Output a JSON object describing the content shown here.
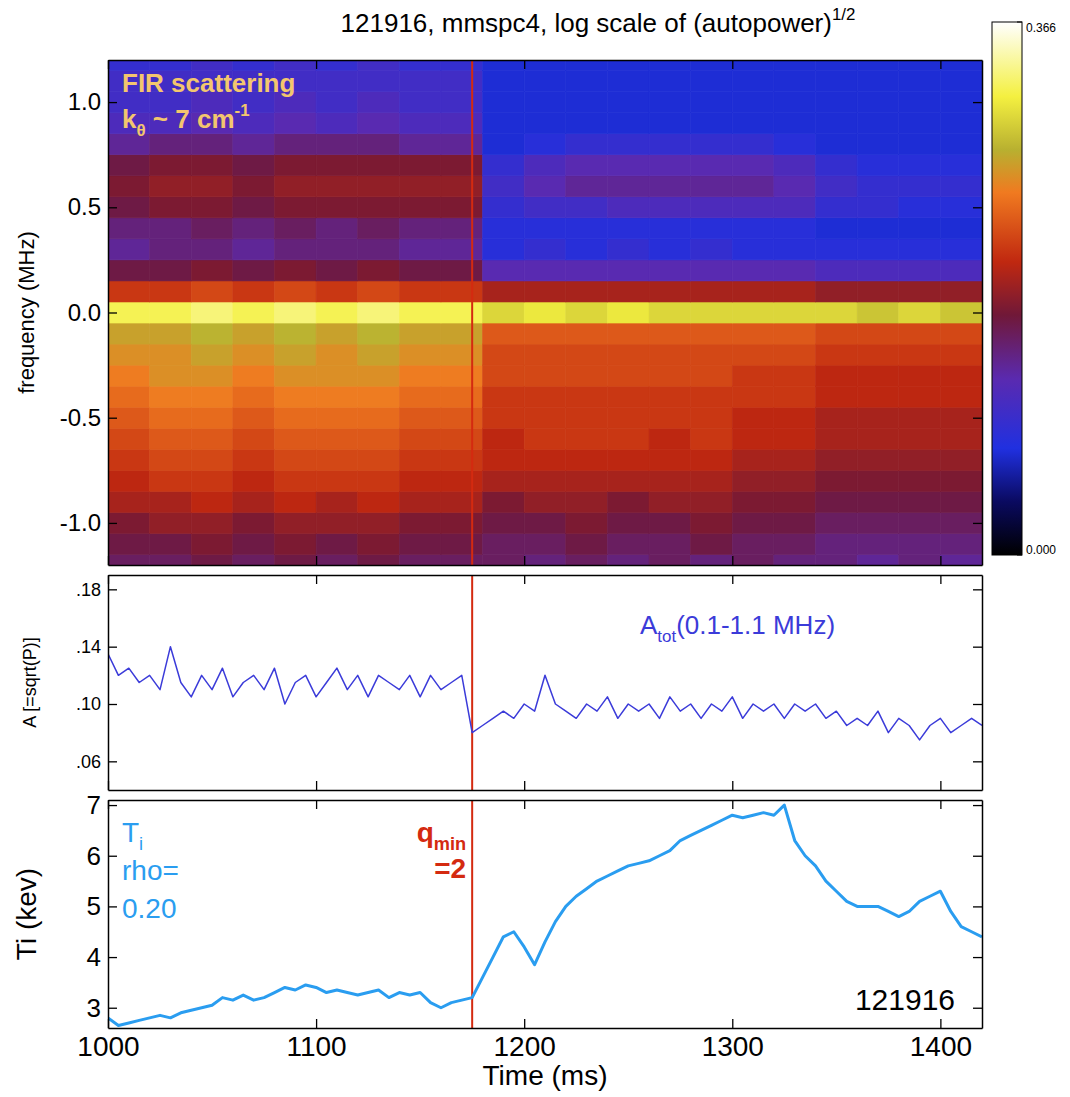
{
  "chart_data": [
    {
      "type": "heatmap",
      "title": {
        "text": "121916, mmspc4, log scale of (autopower)",
        "sup": "1/2"
      },
      "ylabel": "frequency (MHz)",
      "xlim": [
        1000,
        1420
      ],
      "xticks": [
        1000,
        1100,
        1200,
        1300,
        1400
      ],
      "ylim": [
        -1.2,
        1.2
      ],
      "yticks": [
        {
          "value": -1,
          "label": "-1.0"
        },
        -0.5,
        {
          "value": 0,
          "label": "0.0"
        },
        0.5,
        {
          "value": 1,
          "label": "1.0"
        }
      ],
      "tick_labels": "y",
      "x_bins": [
        1000,
        1020,
        1040,
        1060,
        1080,
        1100,
        1120,
        1140,
        1160,
        1180,
        1200,
        1220,
        1240,
        1260,
        1280,
        1300,
        1320,
        1340,
        1360,
        1380,
        1400,
        1420
      ],
      "y": [
        -1.2,
        -1.1,
        -1.0,
        -0.9,
        -0.8,
        -0.7,
        -0.6,
        -0.5,
        -0.4,
        -0.3,
        -0.2,
        -0.1,
        0.0,
        0.1,
        0.2,
        0.3,
        0.4,
        0.5,
        0.6,
        0.7,
        0.8,
        0.9,
        1.0,
        1.1,
        1.2
      ],
      "cells": [
        [
          0.15,
          0.15,
          0.16,
          0.15,
          0.16,
          0.15,
          0.16,
          0.15,
          0.15,
          0.15,
          0.14,
          0.15,
          0.14,
          0.15,
          0.14,
          0.15,
          0.14,
          0.14,
          0.13,
          0.14,
          0.13
        ],
        [
          0.16,
          0.16,
          0.17,
          0.16,
          0.17,
          0.16,
          0.17,
          0.16,
          0.16,
          0.15,
          0.15,
          0.16,
          0.15,
          0.15,
          0.16,
          0.15,
          0.15,
          0.14,
          0.14,
          0.14,
          0.14
        ],
        [
          0.17,
          0.18,
          0.18,
          0.17,
          0.18,
          0.18,
          0.18,
          0.17,
          0.17,
          0.16,
          0.16,
          0.17,
          0.16,
          0.16,
          0.17,
          0.16,
          0.16,
          0.15,
          0.15,
          0.15,
          0.15
        ],
        [
          0.19,
          0.19,
          0.2,
          0.19,
          0.2,
          0.19,
          0.2,
          0.19,
          0.19,
          0.17,
          0.18,
          0.18,
          0.17,
          0.18,
          0.18,
          0.17,
          0.17,
          0.16,
          0.16,
          0.16,
          0.16
        ],
        [
          0.2,
          0.21,
          0.21,
          0.2,
          0.21,
          0.21,
          0.21,
          0.2,
          0.2,
          0.19,
          0.19,
          0.19,
          0.19,
          0.19,
          0.19,
          0.18,
          0.18,
          0.17,
          0.17,
          0.17,
          0.17
        ],
        [
          0.21,
          0.22,
          0.22,
          0.21,
          0.22,
          0.22,
          0.22,
          0.21,
          0.21,
          0.2,
          0.2,
          0.2,
          0.2,
          0.2,
          0.2,
          0.19,
          0.19,
          0.18,
          0.18,
          0.18,
          0.18
        ],
        [
          0.22,
          0.23,
          0.23,
          0.22,
          0.23,
          0.23,
          0.23,
          0.22,
          0.22,
          0.2,
          0.21,
          0.21,
          0.21,
          0.2,
          0.21,
          0.2,
          0.2,
          0.19,
          0.19,
          0.19,
          0.19
        ],
        [
          0.23,
          0.24,
          0.24,
          0.23,
          0.24,
          0.24,
          0.24,
          0.23,
          0.23,
          0.21,
          0.21,
          0.21,
          0.21,
          0.21,
          0.21,
          0.2,
          0.2,
          0.19,
          0.19,
          0.19,
          0.19
        ],
        [
          0.24,
          0.25,
          0.25,
          0.24,
          0.25,
          0.25,
          0.25,
          0.24,
          0.24,
          0.21,
          0.21,
          0.21,
          0.21,
          0.21,
          0.21,
          0.21,
          0.21,
          0.2,
          0.2,
          0.2,
          0.2
        ],
        [
          0.25,
          0.26,
          0.26,
          0.25,
          0.26,
          0.26,
          0.26,
          0.25,
          0.25,
          0.22,
          0.22,
          0.22,
          0.22,
          0.22,
          0.22,
          0.21,
          0.21,
          0.2,
          0.2,
          0.2,
          0.2
        ],
        [
          0.26,
          0.26,
          0.27,
          0.26,
          0.27,
          0.26,
          0.27,
          0.26,
          0.26,
          0.22,
          0.22,
          0.22,
          0.22,
          0.22,
          0.22,
          0.22,
          0.22,
          0.21,
          0.21,
          0.21,
          0.21
        ],
        [
          0.27,
          0.27,
          0.28,
          0.27,
          0.28,
          0.27,
          0.28,
          0.27,
          0.27,
          0.23,
          0.23,
          0.23,
          0.23,
          0.23,
          0.23,
          0.23,
          0.23,
          0.22,
          0.22,
          0.22,
          0.22
        ],
        [
          0.32,
          0.32,
          0.33,
          0.32,
          0.33,
          0.32,
          0.33,
          0.32,
          0.32,
          0.3,
          0.31,
          0.3,
          0.31,
          0.3,
          0.3,
          0.3,
          0.3,
          0.3,
          0.29,
          0.3,
          0.29
        ],
        [
          0.21,
          0.21,
          0.22,
          0.21,
          0.22,
          0.21,
          0.22,
          0.21,
          0.21,
          0.19,
          0.19,
          0.19,
          0.19,
          0.19,
          0.19,
          0.19,
          0.19,
          0.18,
          0.18,
          0.18,
          0.18
        ],
        [
          0.16,
          0.16,
          0.17,
          0.16,
          0.17,
          0.16,
          0.17,
          0.16,
          0.16,
          0.12,
          0.12,
          0.12,
          0.12,
          0.12,
          0.12,
          0.12,
          0.12,
          0.11,
          0.11,
          0.11,
          0.11
        ],
        [
          0.13,
          0.14,
          0.14,
          0.13,
          0.14,
          0.14,
          0.14,
          0.13,
          0.13,
          0.08,
          0.09,
          0.08,
          0.09,
          0.08,
          0.09,
          0.08,
          0.08,
          0.08,
          0.08,
          0.08,
          0.08
        ],
        [
          0.14,
          0.14,
          0.15,
          0.14,
          0.15,
          0.14,
          0.15,
          0.14,
          0.14,
          0.08,
          0.08,
          0.08,
          0.08,
          0.08,
          0.08,
          0.08,
          0.08,
          0.07,
          0.07,
          0.07,
          0.07
        ],
        [
          0.16,
          0.17,
          0.17,
          0.16,
          0.17,
          0.17,
          0.17,
          0.17,
          0.17,
          0.09,
          0.1,
          0.1,
          0.11,
          0.11,
          0.11,
          0.11,
          0.11,
          0.09,
          0.09,
          0.08,
          0.08
        ],
        [
          0.17,
          0.18,
          0.18,
          0.17,
          0.18,
          0.18,
          0.18,
          0.18,
          0.18,
          0.1,
          0.12,
          0.13,
          0.13,
          0.13,
          0.13,
          0.13,
          0.12,
          0.1,
          0.09,
          0.09,
          0.09
        ],
        [
          0.16,
          0.17,
          0.17,
          0.16,
          0.17,
          0.17,
          0.17,
          0.17,
          0.17,
          0.09,
          0.11,
          0.12,
          0.12,
          0.12,
          0.12,
          0.12,
          0.11,
          0.09,
          0.08,
          0.08,
          0.08
        ],
        [
          0.13,
          0.14,
          0.14,
          0.13,
          0.14,
          0.14,
          0.14,
          0.13,
          0.13,
          0.07,
          0.08,
          0.09,
          0.09,
          0.09,
          0.09,
          0.09,
          0.08,
          0.07,
          0.07,
          0.07,
          0.07
        ],
        [
          0.11,
          0.11,
          0.12,
          0.11,
          0.12,
          0.11,
          0.12,
          0.11,
          0.11,
          0.07,
          0.07,
          0.07,
          0.07,
          0.07,
          0.07,
          0.07,
          0.07,
          0.07,
          0.07,
          0.07,
          0.07
        ],
        [
          0.1,
          0.1,
          0.11,
          0.1,
          0.11,
          0.1,
          0.11,
          0.1,
          0.1,
          0.07,
          0.07,
          0.07,
          0.07,
          0.07,
          0.07,
          0.07,
          0.07,
          0.07,
          0.07,
          0.07,
          0.07
        ],
        [
          0.1,
          0.1,
          0.1,
          0.1,
          0.1,
          0.1,
          0.1,
          0.1,
          0.1,
          0.07,
          0.07,
          0.07,
          0.07,
          0.07,
          0.07,
          0.07,
          0.07,
          0.07,
          0.07,
          0.07,
          0.07
        ],
        [
          0.09,
          0.09,
          0.1,
          0.09,
          0.1,
          0.09,
          0.1,
          0.09,
          0.09,
          0.07,
          0.07,
          0.07,
          0.07,
          0.07,
          0.07,
          0.07,
          0.07,
          0.07,
          0.07,
          0.07,
          0.07
        ]
      ],
      "color_range": [
        0,
        0.366
      ],
      "color_ticks": [
        {
          "value": 0,
          "label": "0.000"
        },
        {
          "value": 0.366,
          "label": "0.366"
        }
      ],
      "annotations": [
        {
          "text": "FIR scattering"
        },
        {
          "text": "k",
          "sub": "θ",
          "after": " ~ 7 cm",
          "sup": "-1"
        }
      ],
      "vline": 1175
    },
    {
      "type": "line",
      "ylabel": "A [=sqrt(P)]",
      "xlim": [
        1000,
        1420
      ],
      "xticks": [
        1000,
        1100,
        1200,
        1300,
        1400
      ],
      "ylim": [
        0.04,
        0.19
      ],
      "yticks": [
        {
          "value": 0.06,
          "label": ".06"
        },
        {
          "value": 0.1,
          "label": ".10"
        },
        {
          "value": 0.14,
          "label": ".14"
        },
        {
          "value": 0.18,
          "label": ".18"
        }
      ],
      "tick_labels": "y",
      "x": [
        1000,
        1005,
        1010,
        1015,
        1020,
        1025,
        1030,
        1035,
        1040,
        1045,
        1050,
        1055,
        1060,
        1065,
        1070,
        1075,
        1080,
        1085,
        1090,
        1095,
        1100,
        1105,
        1110,
        1115,
        1120,
        1125,
        1130,
        1135,
        1140,
        1145,
        1150,
        1155,
        1160,
        1165,
        1170,
        1175,
        1180,
        1185,
        1190,
        1195,
        1200,
        1205,
        1210,
        1215,
        1220,
        1225,
        1230,
        1235,
        1240,
        1245,
        1250,
        1255,
        1260,
        1265,
        1270,
        1275,
        1280,
        1285,
        1290,
        1295,
        1300,
        1305,
        1310,
        1315,
        1320,
        1325,
        1330,
        1335,
        1340,
        1345,
        1350,
        1355,
        1360,
        1365,
        1370,
        1375,
        1380,
        1385,
        1390,
        1395,
        1400,
        1405,
        1410,
        1415,
        1420
      ],
      "series": [
        {
          "color": "#3b3bd9",
          "values": [
            0.135,
            0.12,
            0.125,
            0.115,
            0.12,
            0.11,
            0.14,
            0.115,
            0.105,
            0.12,
            0.11,
            0.125,
            0.105,
            0.115,
            0.12,
            0.11,
            0.125,
            0.1,
            0.115,
            0.12,
            0.105,
            0.115,
            0.125,
            0.11,
            0.12,
            0.105,
            0.12,
            0.115,
            0.11,
            0.12,
            0.105,
            0.12,
            0.11,
            0.115,
            0.12,
            0.08,
            0.085,
            0.09,
            0.095,
            0.09,
            0.1,
            0.095,
            0.12,
            0.1,
            0.095,
            0.09,
            0.1,
            0.095,
            0.105,
            0.09,
            0.1,
            0.095,
            0.1,
            0.09,
            0.105,
            0.095,
            0.1,
            0.09,
            0.1,
            0.095,
            0.105,
            0.09,
            0.1,
            0.095,
            0.1,
            0.09,
            0.1,
            0.095,
            0.1,
            0.09,
            0.095,
            0.085,
            0.09,
            0.085,
            0.095,
            0.08,
            0.09,
            0.085,
            0.075,
            0.085,
            0.09,
            0.08,
            0.085,
            0.09,
            0.085
          ]
        }
      ],
      "annotations": [
        {
          "text": "A",
          "sub": "tot",
          "after": "(0.1-1.1 MHz)"
        }
      ],
      "vline": 1175
    },
    {
      "type": "line",
      "ylabel": "Ti (kev)",
      "xlabel": "Time (ms)",
      "xlim": [
        1000,
        1420
      ],
      "xticks": [
        1000,
        1100,
        1200,
        1300,
        1400
      ],
      "ylim": [
        2.6,
        7.1
      ],
      "yticks": [
        3,
        4,
        5,
        6,
        7
      ],
      "x": [
        1000,
        1005,
        1010,
        1015,
        1020,
        1025,
        1030,
        1035,
        1040,
        1045,
        1050,
        1055,
        1060,
        1065,
        1070,
        1075,
        1080,
        1085,
        1090,
        1095,
        1100,
        1105,
        1110,
        1115,
        1120,
        1125,
        1130,
        1135,
        1140,
        1145,
        1150,
        1155,
        1160,
        1165,
        1170,
        1175,
        1180,
        1185,
        1190,
        1195,
        1200,
        1205,
        1210,
        1215,
        1220,
        1225,
        1230,
        1235,
        1240,
        1245,
        1250,
        1255,
        1260,
        1265,
        1270,
        1275,
        1280,
        1285,
        1290,
        1295,
        1300,
        1305,
        1310,
        1315,
        1320,
        1325,
        1330,
        1335,
        1340,
        1345,
        1350,
        1355,
        1360,
        1365,
        1370,
        1375,
        1380,
        1385,
        1390,
        1395,
        1400,
        1405,
        1410,
        1415,
        1420
      ],
      "series": [
        {
          "color": "#2a9df0",
          "values": [
            2.8,
            2.65,
            2.7,
            2.75,
            2.8,
            2.85,
            2.8,
            2.9,
            2.95,
            3.0,
            3.05,
            3.2,
            3.15,
            3.25,
            3.15,
            3.2,
            3.3,
            3.4,
            3.35,
            3.45,
            3.4,
            3.3,
            3.35,
            3.3,
            3.25,
            3.3,
            3.35,
            3.2,
            3.3,
            3.25,
            3.3,
            3.1,
            3.0,
            3.1,
            3.15,
            3.2,
            3.6,
            4.0,
            4.4,
            4.5,
            4.2,
            3.85,
            4.3,
            4.7,
            5.0,
            5.2,
            5.35,
            5.5,
            5.6,
            5.7,
            5.8,
            5.85,
            5.9,
            6.0,
            6.1,
            6.3,
            6.4,
            6.5,
            6.6,
            6.7,
            6.8,
            6.75,
            6.8,
            6.85,
            6.8,
            7.0,
            6.3,
            6.0,
            5.8,
            5.5,
            5.3,
            5.1,
            5.0,
            5.0,
            5.0,
            4.9,
            4.8,
            4.9,
            5.1,
            5.2,
            5.3,
            4.9,
            4.6,
            4.5,
            4.4
          ]
        }
      ],
      "annotations": [
        {
          "text": "T",
          "sub": "i"
        },
        {
          "text": "rho="
        },
        {
          "text": "0.20"
        },
        {
          "text": "q",
          "sub": "min"
        },
        {
          "text": "=2"
        },
        {
          "text": "121916"
        }
      ],
      "vline": 1175
    }
  ]
}
